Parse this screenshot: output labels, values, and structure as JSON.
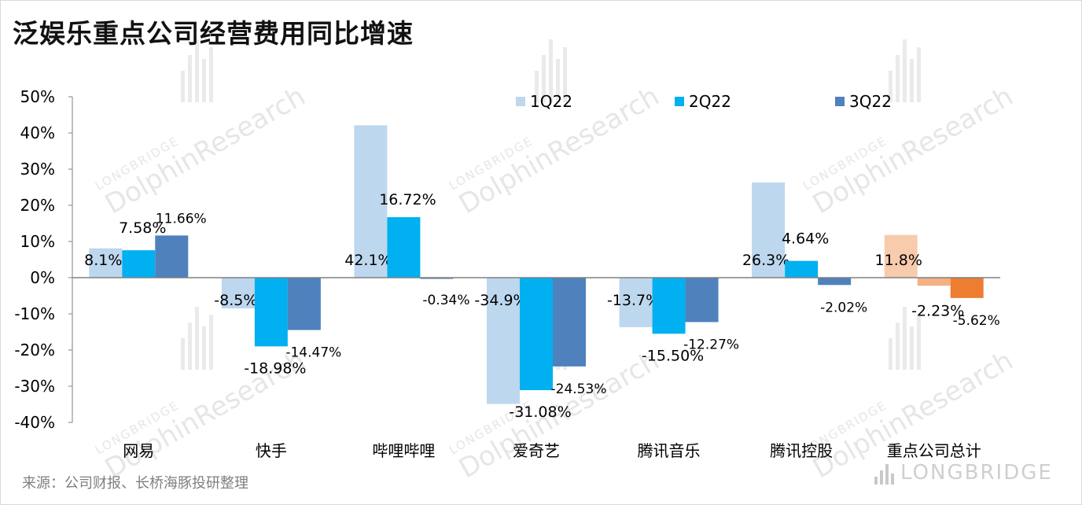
{
  "header": {
    "title": "泛娱乐重点公司经营费用同比增速"
  },
  "footer": {
    "source": "来源：公司财报、长桥海豚投研整理",
    "brand": "LONGBRIDGE"
  },
  "watermark": {
    "line1": "LONGBRIDGE",
    "line2": "DolphinResearch"
  },
  "chart_data": {
    "type": "bar",
    "title": "泛娱乐重点公司经营费用同比增速",
    "xlabel": "",
    "ylabel": "",
    "ylim": [
      -40,
      50
    ],
    "yticks": [
      "50%",
      "40%",
      "30%",
      "20%",
      "10%",
      "0%",
      "-10%",
      "-20%",
      "-30%",
      "-40%"
    ],
    "grid": false,
    "legend_position": "top",
    "categories": [
      "网易",
      "快手",
      "哔哩哔哩",
      "爱奇艺",
      "腾讯音乐",
      "腾讯控股",
      "重点公司总计"
    ],
    "series": [
      {
        "name": "1Q22",
        "color": "#bdd7ee",
        "highlight_color": "#f8cbad",
        "values": [
          8.1,
          -8.5,
          42.1,
          -34.9,
          -13.7,
          26.3,
          11.8
        ],
        "labels": [
          "8.1%",
          "-8.5%",
          "42.1%",
          "-34.9%",
          "-13.7%",
          "26.3%",
          "11.8%"
        ]
      },
      {
        "name": "2Q22",
        "color": "#00b0f0",
        "highlight_color": "#f4b183",
        "values": [
          7.58,
          -18.98,
          16.72,
          -31.08,
          -15.5,
          4.64,
          -2.23
        ],
        "labels": [
          "7.58%",
          "-18.98%",
          "16.72%",
          "-31.08%",
          "-15.50%",
          "4.64%",
          "-2.23%"
        ]
      },
      {
        "name": "3Q22",
        "color": "#4f81bd",
        "highlight_color": "#ed7d31",
        "values": [
          11.66,
          -14.47,
          -0.34,
          -24.53,
          -12.27,
          -2.02,
          -5.62
        ],
        "labels": [
          "11.66%",
          "-14.47%",
          "-0.34%",
          "-24.53%",
          "-12.27%",
          "-2.02%",
          "-5.62%"
        ]
      }
    ]
  }
}
